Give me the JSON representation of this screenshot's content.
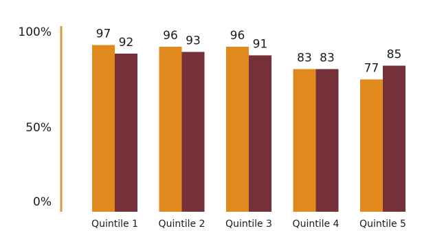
{
  "chart_data": {
    "type": "bar",
    "categories": [
      "Quintile 1",
      "Quintile 2",
      "Quintile 3",
      "Quintile 4",
      "Quintile 5"
    ],
    "series": [
      {
        "values": [
          97,
          96,
          96,
          83,
          77
        ],
        "color": "#e08a1e"
      },
      {
        "values": [
          92,
          93,
          91,
          83,
          85
        ],
        "color": "#76303a"
      }
    ],
    "yticks": [
      "0%",
      "50%",
      "100%"
    ],
    "ylim": [
      0,
      100
    ],
    "axis_color": "#d69a3c"
  }
}
